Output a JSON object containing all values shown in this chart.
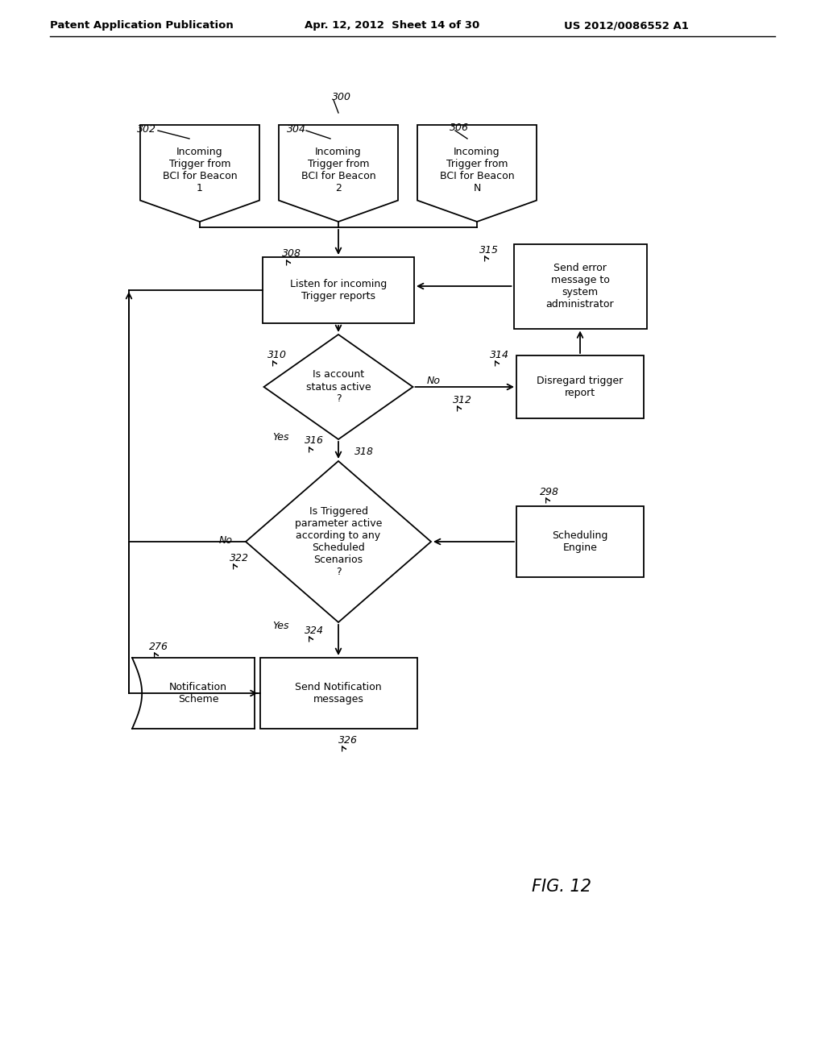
{
  "bg_color": "#ffffff",
  "header_left": "Patent Application Publication",
  "header_center": "Apr. 12, 2012  Sheet 14 of 30",
  "header_right": "US 2012/0086552 A1",
  "fig_label": "FIG. 12"
}
